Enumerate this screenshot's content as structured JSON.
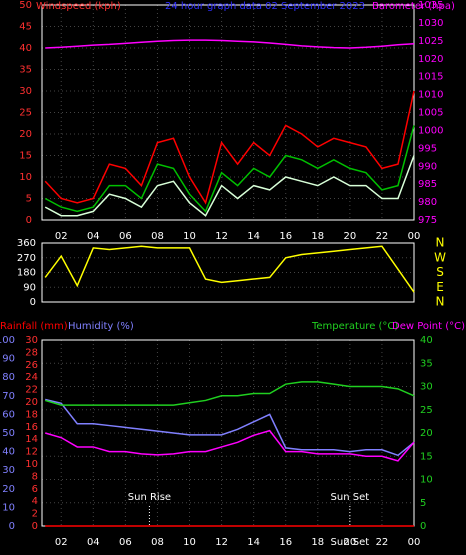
{
  "chart_data": [
    {
      "type": "line",
      "title": "24 hour graph data  02 September 2023",
      "ylabel": "Windspeed (kph)",
      "y2label": "Barometer (hpa)",
      "x": [
        1,
        2,
        3,
        4,
        5,
        6,
        7,
        8,
        9,
        10,
        11,
        12,
        13,
        14,
        15,
        16,
        17,
        18,
        19,
        20,
        21,
        22,
        23,
        24
      ],
      "xlim": [
        0.8,
        24
      ],
      "xticks": [
        {
          "value": 2,
          "label": "02"
        },
        {
          "value": 4,
          "label": "04"
        },
        {
          "value": 6,
          "label": "06"
        },
        {
          "value": 8,
          "label": "08"
        },
        10,
        12,
        14,
        16,
        18,
        20,
        22,
        {
          "value": 24,
          "label": "00"
        }
      ],
      "ylim": [
        0,
        50
      ],
      "yticks": [
        0,
        5,
        10,
        15,
        20,
        25,
        30,
        35,
        40,
        45,
        50
      ],
      "y2lim": [
        975,
        1035
      ],
      "y2ticks": [
        975,
        980,
        985,
        990,
        995,
        1000,
        1005,
        1010,
        1015,
        1020,
        1025,
        1030,
        1035
      ],
      "grid": true,
      "series": [
        {
          "color": "#ff0000",
          "values": [
            9,
            5,
            4,
            5,
            13,
            12,
            8,
            18,
            19,
            10,
            4,
            18,
            13,
            18,
            15,
            22,
            20,
            17,
            19,
            18,
            17,
            12,
            13,
            30
          ]
        },
        {
          "color": "#00c000",
          "values": [
            5,
            3,
            2,
            3,
            8,
            8,
            5,
            13,
            12,
            6,
            2,
            11,
            8,
            12,
            10,
            15,
            14,
            12,
            14,
            12,
            11,
            7,
            8,
            22
          ]
        },
        {
          "color": "#d8ffd8",
          "values": [
            3,
            1,
            1,
            2,
            6,
            5,
            3,
            8,
            9,
            4,
            1,
            8,
            5,
            8,
            7,
            10,
            9,
            8,
            10,
            8,
            8,
            5,
            5,
            15
          ]
        },
        {
          "color": "#ff00ff",
          "axis": "y2",
          "values": [
            1023,
            1023.2,
            1023.5,
            1023.8,
            1024,
            1024.3,
            1024.6,
            1024.9,
            1025.1,
            1025.2,
            1025.2,
            1025.1,
            1024.9,
            1024.7,
            1024.4,
            1024,
            1023.6,
            1023.3,
            1023.1,
            1023,
            1023.2,
            1023.5,
            1023.9,
            1024.2
          ]
        }
      ]
    },
    {
      "type": "line",
      "x": [
        1,
        2,
        3,
        4,
        5,
        6,
        7,
        8,
        9,
        10,
        11,
        12,
        13,
        14,
        15,
        16,
        17,
        18,
        19,
        20,
        21,
        22,
        23,
        24
      ],
      "xlim": [
        0.8,
        24
      ],
      "ylim": [
        0,
        360
      ],
      "yticks": [
        0,
        90,
        180,
        270,
        360
      ],
      "y2lim": [
        0,
        360
      ],
      "y2ticks": [
        {
          "value": 360,
          "label": "N"
        },
        {
          "value": 270,
          "label": "W"
        },
        {
          "value": 180,
          "label": "S"
        },
        {
          "value": 90,
          "label": "E"
        },
        {
          "value": 0,
          "label": "N"
        }
      ],
      "grid": true,
      "series": [
        {
          "color": "#ffff00",
          "values": [
            150,
            280,
            100,
            330,
            320,
            330,
            340,
            330,
            330,
            330,
            140,
            120,
            130,
            140,
            150,
            270,
            290,
            300,
            310,
            320,
            330,
            340,
            200,
            60
          ]
        }
      ]
    },
    {
      "type": "line",
      "x": [
        1,
        2,
        3,
        4,
        5,
        6,
        7,
        8,
        9,
        10,
        11,
        12,
        13,
        14,
        15,
        16,
        17,
        18,
        19,
        20,
        21,
        22,
        23,
        24
      ],
      "xlim": [
        0.8,
        24
      ],
      "xticks": [
        {
          "value": 2,
          "label": "02"
        },
        {
          "value": 4,
          "label": "04"
        },
        {
          "value": 6,
          "label": "06"
        },
        {
          "value": 8,
          "label": "08"
        },
        10,
        12,
        14,
        16,
        18,
        20,
        22,
        {
          "value": 24,
          "label": "00"
        }
      ],
      "ylim": [
        0,
        100
      ],
      "yticks": [
        0,
        10,
        20,
        30,
        40,
        50,
        60,
        70,
        80,
        90,
        100
      ],
      "y3lim": [
        0,
        30
      ],
      "y3ticks": [
        0,
        2,
        4,
        6,
        8,
        10,
        12,
        14,
        16,
        18,
        20,
        22,
        24,
        26,
        28,
        30
      ],
      "y2lim": [
        0,
        40
      ],
      "y2ticks": [
        0,
        5,
        10,
        15,
        20,
        25,
        30,
        35,
        40
      ],
      "grid": true,
      "annotations": [
        {
          "text": "Sun Rise",
          "x": 7.5
        },
        {
          "text": "Sun Set",
          "x": 20
        }
      ],
      "axis_annotation": {
        "text": "Sun Set",
        "x": 20
      },
      "series": [
        {
          "name": "Rainfall (mm)",
          "color": "#ff0000",
          "axis": "y3",
          "values": [
            0,
            0,
            0,
            0,
            0,
            0,
            0,
            0,
            0,
            0,
            0,
            0,
            0,
            0,
            0,
            0,
            0,
            0,
            0,
            0,
            0,
            0,
            0,
            0
          ]
        },
        {
          "name": "Humidity (%)",
          "color": "#8080ff",
          "axis": "y",
          "values": [
            68,
            66,
            55,
            55,
            54,
            53,
            52,
            51,
            50,
            49,
            49,
            49,
            52,
            56,
            60,
            42,
            41,
            41,
            41,
            40,
            41,
            41,
            38,
            45
          ]
        },
        {
          "name": "Temperature (°C)",
          "color": "#20d020",
          "axis": "y2",
          "values": [
            27,
            26,
            26,
            26,
            26,
            26,
            26,
            26,
            26,
            26.5,
            27,
            28,
            28,
            28.5,
            28.5,
            30.5,
            31,
            31,
            30.5,
            30,
            30,
            30,
            29.5,
            28
          ]
        },
        {
          "name": "Dew Point (°C)",
          "color": "#ff00ff",
          "axis": "y2",
          "values": [
            20,
            19,
            17,
            17,
            16,
            16,
            15.5,
            15.3,
            15.5,
            16,
            16,
            17,
            18,
            19.5,
            20.5,
            16,
            16,
            15.5,
            15.5,
            15.5,
            15,
            15,
            14,
            18
          ]
        }
      ]
    }
  ]
}
